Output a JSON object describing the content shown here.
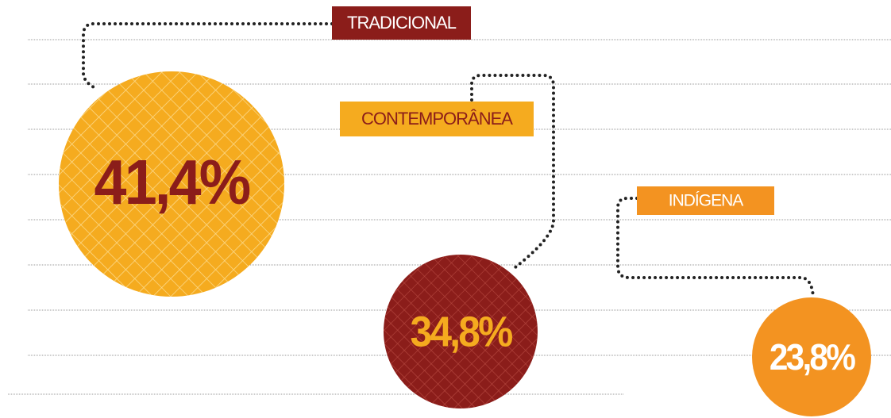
{
  "chart_data": {
    "type": "bubble",
    "categories": [
      "TRADICIONAL",
      "CONTEMPORÂNEA",
      "INDÍGENA"
    ],
    "values": [
      41.4,
      34.8,
      23.8
    ],
    "value_labels": [
      "41,4%",
      "34,8%",
      "23,8%"
    ],
    "colors": [
      "#f5ab1f",
      "#8b1d1a",
      "#f39321"
    ]
  }
}
